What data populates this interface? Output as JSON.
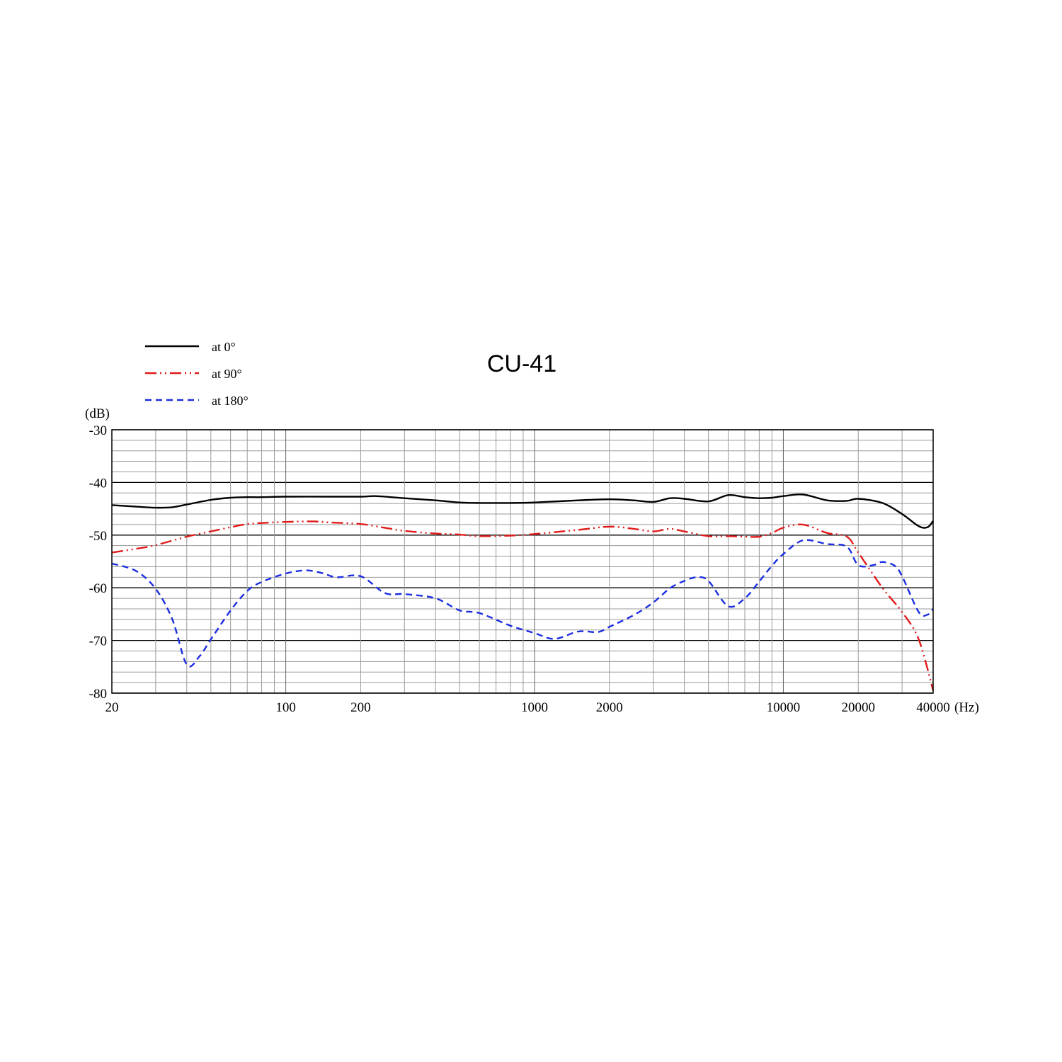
{
  "chart_data": {
    "type": "line",
    "title": "CU-41",
    "ylabel": "(dB)",
    "xlabel": "(Hz)",
    "x_scale": "log",
    "xlim": [
      20,
      40000
    ],
    "ylim": [
      -80,
      -30
    ],
    "grid": true,
    "legend_position": "top-left",
    "x_tick_labels": [
      "20",
      "100",
      "200",
      "1000",
      "2000",
      "10000",
      "20000",
      "40000"
    ],
    "x_tick_values": [
      20,
      100,
      200,
      1000,
      2000,
      10000,
      20000,
      40000
    ],
    "y_tick_labels": [
      "-30",
      "-40",
      "-50",
      "-60",
      "-70",
      "-80"
    ],
    "y_tick_values": [
      -30,
      -40,
      -50,
      -60,
      -70,
      -80
    ],
    "y_major_step": 10,
    "y_minor_step": 2,
    "series": [
      {
        "name": "at 0°",
        "color": "#000000",
        "style": "solid",
        "points": [
          [
            20,
            -44.3
          ],
          [
            25,
            -44.6
          ],
          [
            30,
            -44.8
          ],
          [
            35,
            -44.7
          ],
          [
            40,
            -44.2
          ],
          [
            50,
            -43.3
          ],
          [
            60,
            -42.9
          ],
          [
            70,
            -42.8
          ],
          [
            80,
            -42.8
          ],
          [
            100,
            -42.7
          ],
          [
            150,
            -42.7
          ],
          [
            200,
            -42.7
          ],
          [
            230,
            -42.6
          ],
          [
            300,
            -43.0
          ],
          [
            400,
            -43.4
          ],
          [
            500,
            -43.8
          ],
          [
            600,
            -43.9
          ],
          [
            800,
            -43.9
          ],
          [
            1000,
            -43.8
          ],
          [
            1500,
            -43.4
          ],
          [
            2000,
            -43.2
          ],
          [
            2500,
            -43.4
          ],
          [
            3000,
            -43.7
          ],
          [
            3500,
            -43.0
          ],
          [
            4000,
            -43.1
          ],
          [
            5000,
            -43.6
          ],
          [
            6000,
            -42.4
          ],
          [
            7000,
            -42.8
          ],
          [
            8000,
            -43.0
          ],
          [
            9000,
            -42.9
          ],
          [
            10000,
            -42.6
          ],
          [
            12000,
            -42.3
          ],
          [
            15000,
            -43.4
          ],
          [
            18000,
            -43.5
          ],
          [
            20000,
            -43.1
          ],
          [
            25000,
            -43.9
          ],
          [
            30000,
            -46.0
          ],
          [
            35000,
            -48.3
          ],
          [
            38000,
            -48.5
          ],
          [
            40000,
            -47.3
          ]
        ]
      },
      {
        "name": "at 90°",
        "color": "#e11b1b",
        "style": "dashdotdot",
        "points": [
          [
            20,
            -53.3
          ],
          [
            25,
            -52.6
          ],
          [
            30,
            -51.9
          ],
          [
            40,
            -50.3
          ],
          [
            50,
            -49.3
          ],
          [
            60,
            -48.5
          ],
          [
            70,
            -47.9
          ],
          [
            80,
            -47.7
          ],
          [
            100,
            -47.5
          ],
          [
            130,
            -47.4
          ],
          [
            150,
            -47.6
          ],
          [
            200,
            -47.9
          ],
          [
            250,
            -48.6
          ],
          [
            300,
            -49.2
          ],
          [
            400,
            -49.7
          ],
          [
            500,
            -49.9
          ],
          [
            600,
            -50.2
          ],
          [
            800,
            -50.1
          ],
          [
            1000,
            -49.8
          ],
          [
            1500,
            -49.0
          ],
          [
            2000,
            -48.4
          ],
          [
            2500,
            -48.8
          ],
          [
            3000,
            -49.3
          ],
          [
            3500,
            -48.8
          ],
          [
            4000,
            -49.3
          ],
          [
            5000,
            -50.2
          ],
          [
            6000,
            -50.2
          ],
          [
            7000,
            -50.3
          ],
          [
            8000,
            -50.3
          ],
          [
            9000,
            -49.6
          ],
          [
            10000,
            -48.6
          ],
          [
            12000,
            -48.0
          ],
          [
            15000,
            -49.6
          ],
          [
            18000,
            -50.3
          ],
          [
            20000,
            -53.3
          ],
          [
            25000,
            -60.0
          ],
          [
            30000,
            -64.6
          ],
          [
            35000,
            -69.8
          ],
          [
            40000,
            -79.5
          ]
        ]
      },
      {
        "name": "at 180°",
        "color": "#1b2ee0",
        "style": "dashed",
        "points": [
          [
            20,
            -55.4
          ],
          [
            25,
            -56.8
          ],
          [
            30,
            -60.2
          ],
          [
            35,
            -66.0
          ],
          [
            40,
            -74.6
          ],
          [
            45,
            -73.0
          ],
          [
            50,
            -69.8
          ],
          [
            60,
            -64.3
          ],
          [
            70,
            -60.6
          ],
          [
            80,
            -58.9
          ],
          [
            100,
            -57.3
          ],
          [
            120,
            -56.7
          ],
          [
            140,
            -57.2
          ],
          [
            160,
            -58.0
          ],
          [
            200,
            -57.8
          ],
          [
            250,
            -61.0
          ],
          [
            300,
            -61.2
          ],
          [
            400,
            -62.0
          ],
          [
            500,
            -64.3
          ],
          [
            600,
            -64.8
          ],
          [
            800,
            -67.2
          ],
          [
            1000,
            -68.6
          ],
          [
            1200,
            -69.7
          ],
          [
            1500,
            -68.3
          ],
          [
            1800,
            -68.4
          ],
          [
            2000,
            -67.4
          ],
          [
            2500,
            -65.2
          ],
          [
            3000,
            -62.8
          ],
          [
            3500,
            -60.1
          ],
          [
            4000,
            -58.7
          ],
          [
            4500,
            -58.0
          ],
          [
            5000,
            -58.7
          ],
          [
            6000,
            -63.5
          ],
          [
            7000,
            -62.0
          ],
          [
            8000,
            -58.8
          ],
          [
            9000,
            -55.8
          ],
          [
            10000,
            -53.6
          ],
          [
            12000,
            -51.0
          ],
          [
            15000,
            -51.7
          ],
          [
            18000,
            -52.2
          ],
          [
            20000,
            -55.7
          ],
          [
            23000,
            -55.7
          ],
          [
            25000,
            -55.1
          ],
          [
            28000,
            -55.8
          ],
          [
            30000,
            -57.8
          ],
          [
            35000,
            -64.6
          ],
          [
            38000,
            -65.1
          ],
          [
            40000,
            -64.0
          ]
        ]
      }
    ]
  }
}
